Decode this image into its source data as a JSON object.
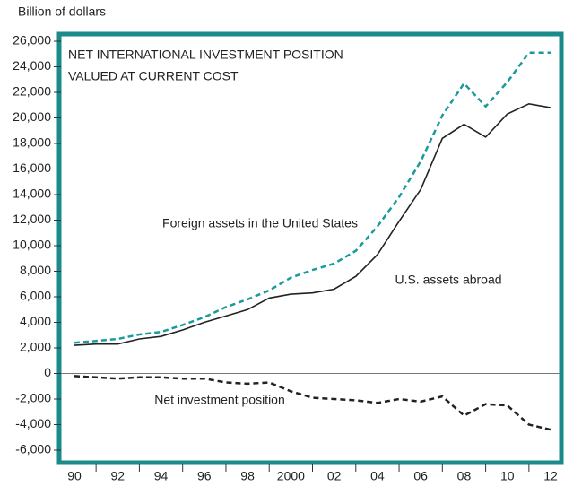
{
  "chart_data": {
    "type": "line",
    "y_label": "Billion of dollars",
    "title": [
      "NET INTERNATIONAL INVESTMENT POSITION",
      "VALUED AT CURRENT COST"
    ],
    "categories": [
      "90",
      null,
      "92",
      null,
      "94",
      null,
      "96",
      null,
      "98",
      null,
      "2000",
      null,
      "02",
      null,
      "04",
      null,
      "06",
      null,
      "08",
      null,
      "10",
      null,
      "12"
    ],
    "series": [
      {
        "name": "Foreign assets in the United States",
        "color": "#1a9a9a",
        "dash": true,
        "values": [
          2400,
          2550,
          2700,
          3050,
          3250,
          3800,
          4400,
          5200,
          5800,
          6500,
          7500,
          8100,
          8600,
          9600,
          11500,
          13800,
          16600,
          20200,
          22700,
          20900,
          22800,
          25100,
          25100
        ]
      },
      {
        "name": "U.S. assets abroad",
        "color": "#222222",
        "dash": false,
        "values": [
          2200,
          2300,
          2300,
          2700,
          2900,
          3400,
          4000,
          4500,
          5000,
          5900,
          6200,
          6300,
          6600,
          7600,
          9300,
          11900,
          14400,
          18400,
          19500,
          18500,
          20300,
          21100,
          20800
        ]
      },
      {
        "name": "Net investment position",
        "color": "#222222",
        "dash": true,
        "values": [
          -200,
          -300,
          -400,
          -300,
          -300,
          -400,
          -400,
          -700,
          -800,
          -700,
          -1400,
          -1900,
          -2000,
          -2100,
          -2300,
          -2000,
          -2200,
          -1800,
          -3300,
          -2400,
          -2500,
          -4000,
          -4400
        ]
      }
    ],
    "ylim": [
      -6000,
      26000
    ],
    "yticks": [
      {
        "value": -6000,
        "label": "-6,000"
      },
      {
        "value": -4000,
        "label": "-4,000"
      },
      {
        "value": -2000,
        "label": "-2,000"
      },
      0,
      {
        "value": 2000,
        "label": "2,000"
      },
      {
        "value": 4000,
        "label": "4,000"
      },
      {
        "value": 6000,
        "label": "6,000"
      },
      {
        "value": 8000,
        "label": "8,000"
      },
      {
        "value": 10000,
        "label": "10,000"
      },
      {
        "value": 12000,
        "label": "12,000"
      },
      {
        "value": 14000,
        "label": "14,000"
      },
      {
        "value": 16000,
        "label": "16,000"
      },
      {
        "value": 18000,
        "label": "18,000"
      },
      {
        "value": 20000,
        "label": "20,000"
      },
      {
        "value": 22000,
        "label": "22,000"
      },
      {
        "value": 24000,
        "label": "24,000"
      },
      {
        "value": 26000,
        "label": "26,000"
      }
    ],
    "frame_color": "#1a8a8a"
  }
}
